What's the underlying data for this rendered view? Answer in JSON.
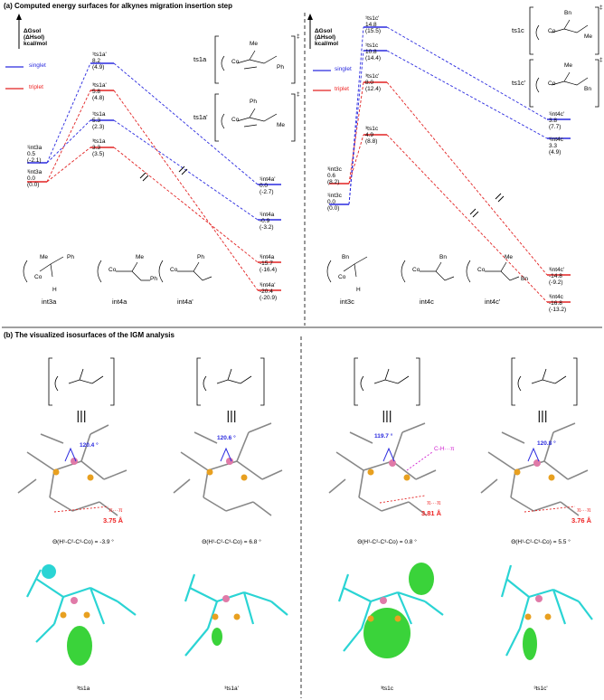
{
  "section_a": {
    "title": "(a) Computed energy surfaces for alkynes migration insertion step",
    "axis_label_line1": "ΔGsol",
    "axis_label_line2": "(ΔHsol)",
    "axis_label_line3": "kcal/mol",
    "legend_singlet": "singlet",
    "legend_triplet": "triplet",
    "colors": {
      "singlet": "#2a2adf",
      "triplet": "#e22222"
    }
  },
  "left_panel": {
    "levels": [
      {
        "name": "1int3a",
        "label": "¹int3a",
        "g": "0.5",
        "h": "(-2.1)",
        "spin": "singlet"
      },
      {
        "name": "3int3a",
        "label": "³int3a",
        "g": "0.0",
        "h": "(0.0)",
        "spin": "triplet"
      },
      {
        "name": "1ts1a-prime",
        "label": "¹ts1a'",
        "g": "8.2",
        "h": "(4.9)",
        "spin": "singlet"
      },
      {
        "name": "3ts1a-prime",
        "label": "³ts1a'",
        "g": "5.8",
        "h": "(4.8)",
        "spin": "triplet"
      },
      {
        "name": "1ts1a",
        "label": "¹ts1a",
        "g": "5.3",
        "h": "(2.3)",
        "spin": "singlet"
      },
      {
        "name": "3ts1a",
        "label": "³ts1a",
        "g": "3.3",
        "h": "(3.5)",
        "spin": "triplet"
      },
      {
        "name": "1int4a-prime",
        "label": "¹int4a'",
        "g": "0.0",
        "h": "(-2.7)",
        "spin": "singlet"
      },
      {
        "name": "1int4a",
        "label": "¹int4a",
        "g": "-0.9",
        "h": "(-3.2)",
        "spin": "singlet"
      },
      {
        "name": "3int4a",
        "label": "³int4a",
        "g": "-15.7",
        "h": "(-16.4)",
        "spin": "triplet"
      },
      {
        "name": "3int4a-prime",
        "label": "³int4a'",
        "g": "-20.4",
        "h": "(-20.9)",
        "spin": "triplet"
      }
    ],
    "ts_labels": [
      "ts1a",
      "ts1a'"
    ],
    "ts_mark": "‡",
    "structures": [
      "int3a",
      "int4a",
      "int4a'"
    ],
    "struct_text": {
      "me": "Me",
      "ph": "Ph",
      "co": "Co",
      "p": "P",
      "h": "H"
    }
  },
  "right_panel": {
    "levels": [
      {
        "name": "3int3c",
        "label": "³int3c",
        "g": "0.6",
        "h": "(8.2)",
        "spin": "triplet"
      },
      {
        "name": "1int3c",
        "label": "¹int3c",
        "g": "0.0",
        "h": "(0.0)",
        "spin": "singlet"
      },
      {
        "name": "1ts1c-prime",
        "label": "¹ts1c'",
        "g": "14.8",
        "h": "(15.5)",
        "spin": "singlet"
      },
      {
        "name": "1ts1c",
        "label": "¹ts1c",
        "g": "10.8",
        "h": "(14.4)",
        "spin": "singlet"
      },
      {
        "name": "3ts1c-prime",
        "label": "³ts1c'",
        "g": "8.0",
        "h": "(12.4)",
        "spin": "triplet"
      },
      {
        "name": "3ts1c",
        "label": "³ts1c",
        "g": "4.9",
        "h": "(8.8)",
        "spin": "triplet"
      },
      {
        "name": "1int4c-prime",
        "label": "¹int4c'",
        "g": "3.8",
        "h": "(7.7)",
        "spin": "singlet"
      },
      {
        "name": "1int4c",
        "label": "¹int4c",
        "g": "3.3",
        "h": "(4.9)",
        "spin": "singlet"
      },
      {
        "name": "3int4c-prime",
        "label": "³int4c'",
        "g": "-14.8",
        "h": "(-9.2)",
        "spin": "triplet"
      },
      {
        "name": "3int4c",
        "label": "³int4c",
        "g": "-16.8",
        "h": "(-13.2)",
        "spin": "triplet"
      }
    ],
    "ts_labels": [
      "ts1c",
      "ts1c'"
    ],
    "ts_mark": "‡",
    "structures": [
      "int3c",
      "int4c",
      "int4c'"
    ],
    "struct_text": {
      "bn": "Bn",
      "me": "Me",
      "co": "Co",
      "p": "P",
      "h": "H"
    }
  },
  "section_b": {
    "title": "(b) The visualized isosurfaces of the IGM analysis",
    "equiv": "|||",
    "columns": [
      {
        "angle": "120.4 °",
        "pipi_label": "π···π",
        "pipi_dist": "3.75 Å",
        "dihedral": "Θ(H¹-C²-C³-Co) = -3.9 °",
        "name": "³ts1a"
      },
      {
        "angle": "120.6 °",
        "pipi_label": "",
        "pipi_dist": "",
        "dihedral": "Θ(H¹-C²-C³-Co) = 6.8 °",
        "name": "³ts1a'"
      },
      {
        "angle": "119.7 °",
        "pipi_label": "π···π",
        "pipi_dist": "3.81 Å",
        "ch_pi": "C-H···π",
        "dihedral": "Θ(H¹-C²-C³-Co) = 0.8 °",
        "name": "³ts1c"
      },
      {
        "angle": "120.8 °",
        "pipi_label": "π···π",
        "pipi_dist": "3.76 Å",
        "dihedral": "Θ(H¹-C²-C³-Co) = 5.5 °",
        "name": "³ts1c'"
      }
    ],
    "colors": {
      "carbon": "#b8b8b8",
      "cyan": "#2ad4d4",
      "phosphorus": "#e8a020",
      "cobalt": "#e07aa8",
      "isosurface": "#3ad33a"
    }
  }
}
